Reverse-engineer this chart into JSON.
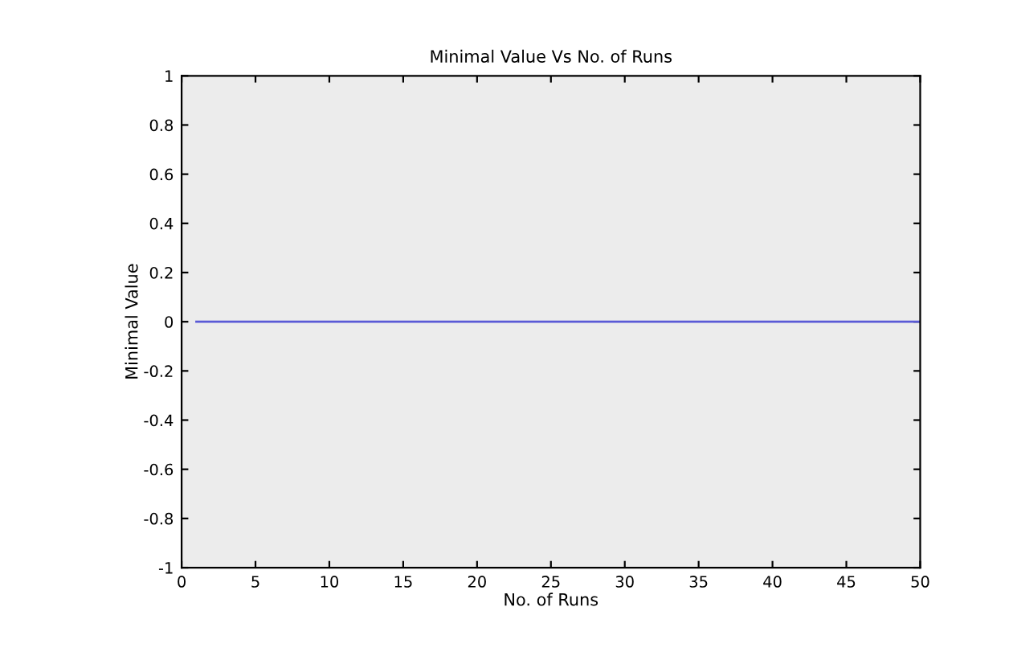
{
  "chart_data": {
    "type": "line",
    "title": "Minimal Value Vs No. of Runs",
    "xlabel": "No. of Runs",
    "ylabel": "Minimal Value",
    "x": [
      1,
      50
    ],
    "series": [
      {
        "color": "#5a5ad6",
        "values": [
          0,
          0
        ]
      }
    ],
    "xlim": [
      0,
      50
    ],
    "xticks": [
      0,
      5,
      10,
      15,
      20,
      25,
      30,
      35,
      40,
      45,
      50
    ],
    "ylim": [
      -1,
      1
    ],
    "yticks": [
      -1,
      -0.8,
      -0.6,
      -0.4,
      -0.2,
      0,
      0.2,
      0.4,
      0.6,
      0.8,
      1
    ],
    "grid": false,
    "legend": false
  }
}
